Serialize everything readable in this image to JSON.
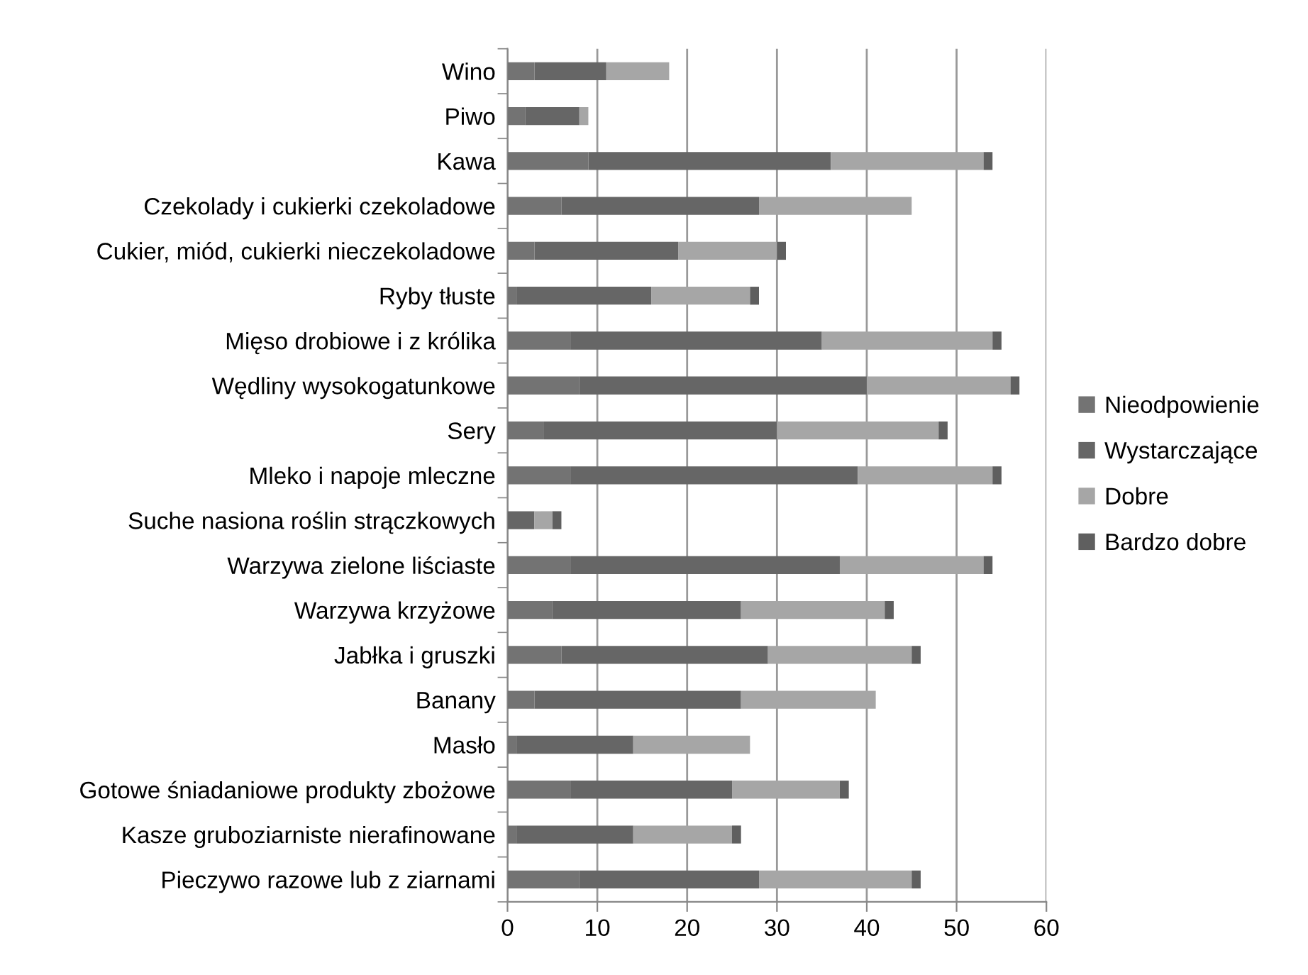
{
  "chart_data": {
    "type": "bar",
    "orientation": "horizontal",
    "stacked": true,
    "categories": [
      "Wino",
      "Piwo",
      "Kawa",
      "Czekolady i cukierki czekoladowe",
      "Cukier, miód, cukierki nieczekoladowe",
      "Ryby tłuste",
      "Mięso drobiowe i z królika",
      "Wędliny wysokogatunkowe",
      "Sery",
      "Mleko i napoje mleczne",
      "Suche nasiona roślin strączkowych",
      "Warzywa zielone liściaste",
      "Warzywa krzyżowe",
      "Jabłka i gruszki",
      "Banany",
      "Masło",
      "Gotowe śniadaniowe produkty zbożowe",
      "Kasze gruboziarniste nierafinowane",
      "Pieczywo razowe lub z ziarnami"
    ],
    "series": [
      {
        "name": "Nieodpowienie",
        "color": "#737373",
        "values": [
          3,
          2,
          9,
          6,
          3,
          1,
          7,
          8,
          4,
          7,
          0,
          7,
          5,
          6,
          3,
          1,
          7,
          1,
          8
        ]
      },
      {
        "name": "Wystarczające",
        "color": "#666666",
        "values": [
          8,
          6,
          27,
          22,
          16,
          15,
          28,
          32,
          26,
          32,
          3,
          30,
          21,
          23,
          23,
          13,
          18,
          13,
          20
        ]
      },
      {
        "name": "Dobre",
        "color": "#a6a6a6",
        "values": [
          7,
          1,
          17,
          17,
          11,
          11,
          19,
          16,
          18,
          15,
          2,
          16,
          16,
          16,
          15,
          13,
          12,
          11,
          17
        ]
      },
      {
        "name": "Bardzo dobre",
        "color": "#5f5f5f",
        "values": [
          0,
          0,
          1,
          0,
          1,
          1,
          1,
          1,
          1,
          1,
          1,
          1,
          1,
          1,
          0,
          0,
          1,
          1,
          1
        ]
      }
    ],
    "xlim": [
      0,
      60
    ],
    "xticks": [
      0,
      10,
      20,
      30,
      40,
      50,
      60
    ],
    "grid": "x",
    "legend": "right"
  }
}
